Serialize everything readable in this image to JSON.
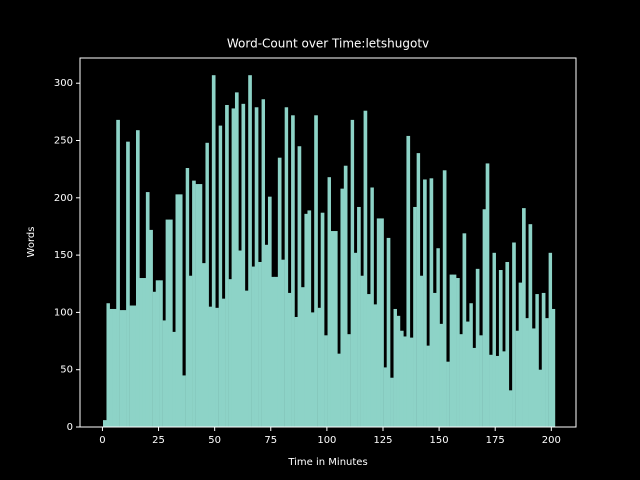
{
  "chart_data": {
    "type": "bar",
    "title": "Word-Count over Time:letshugotv",
    "x_label": "Time in Minutes",
    "y_label": "Words",
    "color": "#8dd3c7",
    "xlim": [
      -10,
      211
    ],
    "ylim": [
      0,
      322
    ],
    "xticks": [
      0,
      25,
      50,
      75,
      100,
      125,
      150,
      175,
      200
    ],
    "yticks": [
      0,
      50,
      100,
      150,
      200,
      250,
      300
    ],
    "x": [
      1.0,
      2.5,
      3.9,
      5.4,
      6.9,
      8.4,
      9.8,
      11.3,
      12.8,
      14.2,
      15.7,
      17.2,
      18.6,
      20.1,
      21.6,
      23.1,
      24.5,
      26.0,
      27.5,
      28.9,
      30.4,
      31.9,
      33.3,
      34.8,
      36.3,
      37.8,
      39.2,
      40.7,
      42.2,
      43.6,
      45.1,
      46.6,
      48.0,
      49.5,
      51.0,
      52.5,
      53.9,
      55.4,
      56.9,
      58.3,
      59.8,
      61.3,
      62.7,
      64.2,
      65.7,
      67.2,
      68.6,
      70.1,
      71.6,
      73.0,
      74.5,
      76.0,
      77.4,
      78.9,
      80.4,
      81.9,
      83.3,
      84.8,
      86.3,
      87.7,
      89.2,
      90.7,
      92.1,
      93.6,
      95.1,
      96.6,
      98.0,
      99.5,
      101.0,
      102.4,
      103.9,
      105.4,
      106.8,
      108.3,
      109.8,
      111.3,
      112.7,
      114.2,
      115.7,
      117.1,
      118.6,
      120.1,
      121.5,
      123.0,
      124.5,
      126.0,
      127.4,
      128.9,
      130.4,
      131.8,
      133.3,
      134.8,
      136.2,
      137.7,
      139.2,
      140.7,
      142.1,
      143.6,
      145.1,
      146.5,
      148.0,
      149.5,
      150.9,
      152.4,
      153.9,
      155.4,
      156.8,
      158.3,
      159.8,
      161.2,
      162.7,
      164.2,
      165.6,
      167.1,
      168.6,
      170.1,
      171.5,
      173.0,
      174.5,
      175.9,
      177.4,
      178.9,
      180.3,
      181.8,
      183.3,
      184.8,
      186.2,
      187.7,
      189.2,
      190.6,
      192.1,
      193.6,
      195.0,
      196.5,
      198.0,
      199.5,
      200.9
    ],
    "values": [
      6,
      108,
      103,
      103,
      268,
      102,
      102,
      249,
      106,
      106,
      259,
      130,
      130,
      205,
      172,
      118,
      128,
      128,
      93,
      181,
      181,
      83,
      203,
      203,
      45,
      226,
      132,
      215,
      212,
      212,
      143,
      248,
      105,
      307,
      104,
      263,
      112,
      281,
      129,
      278,
      292,
      154,
      282,
      119,
      307,
      140,
      279,
      144,
      286,
      159,
      201,
      131,
      131,
      235,
      146,
      279,
      117,
      272,
      96,
      245,
      122,
      186,
      189,
      100,
      272,
      104,
      187,
      80,
      218,
      171,
      171,
      64,
      208,
      228,
      81,
      268,
      152,
      192,
      132,
      276,
      116,
      209,
      107,
      182,
      182,
      52,
      165,
      43,
      103,
      97,
      84,
      79,
      254,
      78,
      192,
      239,
      132,
      216,
      71,
      217,
      117,
      156,
      90,
      224,
      57,
      133,
      133,
      130,
      81,
      169,
      92,
      108,
      69,
      138,
      80,
      190,
      230,
      63,
      152,
      62,
      137,
      66,
      144,
      32,
      161,
      84,
      126,
      191,
      95,
      177,
      86,
      116,
      50,
      117,
      95,
      152,
      103
    ]
  }
}
